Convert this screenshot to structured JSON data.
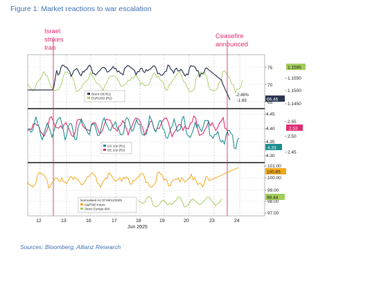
{
  "figure_title": "Figure 1: Market reactions to war escalation",
  "source": "Sources: Bloomberg, Allianz Research",
  "colors": {
    "navy": "#2b3550",
    "green": "#a3cd5c",
    "crimson": "#e0296f",
    "teal": "#1c8d8d",
    "orange": "#f3a71a",
    "pink_line": "#e0296f"
  },
  "chart_data": [
    {
      "type": "line",
      "panel": "top",
      "series": [
        {
          "name": "Brent Oil (R1)",
          "color": "#2b3550"
        },
        {
          "name": "EURUSD (R2)",
          "color": "#a3cd5c"
        }
      ],
      "x_ticks": [
        "12",
        "13",
        "16",
        "17",
        "18",
        "19",
        "20",
        "23",
        "24"
      ],
      "x_sublabel": "Jun 2025",
      "r1_ticks": [
        "75",
        "70",
        "65"
      ],
      "r2_ticks": [
        "1.1550",
        "1.1500",
        "1.1450"
      ],
      "badges": {
        "eurusd": "1.1595",
        "brent": "66.46"
      },
      "change_labels": [
        "-2.48%",
        "-1.69"
      ],
      "annotations": [
        "Israel",
        "strikes",
        "Iran",
        "Ceasefire",
        "announced"
      ]
    },
    {
      "type": "line",
      "panel": "middle",
      "series": [
        {
          "name": "US 10y (R1)",
          "color": "#1c8d8d"
        },
        {
          "name": "DE 10y (R2)",
          "color": "#e0296f"
        }
      ],
      "r1_ticks": [
        "4.45",
        "4.40",
        "4.35",
        "4.30"
      ],
      "r2_ticks": [
        "2.55",
        "2.50",
        "2.45"
      ],
      "badges": {
        "de10y": "2.53",
        "us10y": "4.33"
      }
    },
    {
      "type": "line",
      "panel": "bottom",
      "legend_title": "Normalised As Of 06/12/2025",
      "series": [
        {
          "name": "S&P500 future",
          "color": "#f3a71a"
        },
        {
          "name": "Stoxx Europe 600",
          "color": "#a3cd5c"
        }
      ],
      "r_ticks": [
        "101.00",
        "100.00",
        "99.00",
        "98.00",
        "97.00"
      ],
      "badges": {
        "sp500": "100.65",
        "stoxx": "98.44"
      }
    }
  ]
}
